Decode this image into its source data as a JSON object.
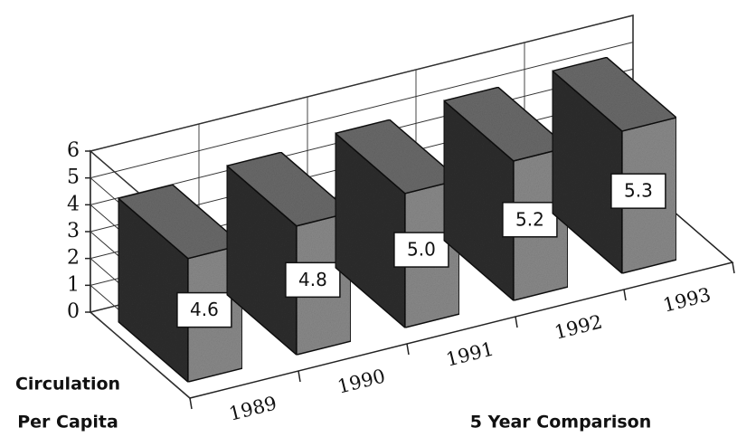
{
  "chart_data": {
    "type": "bar3d",
    "categories": [
      "1989",
      "1990",
      "1991",
      "1992",
      "1993"
    ],
    "values": [
      4.6,
      4.8,
      5.0,
      5.2,
      5.3
    ],
    "value_labels": [
      "4.6",
      "4.8",
      "5.0",
      "5.2",
      "5.3"
    ],
    "ylim": [
      0,
      6
    ],
    "yticks": [
      0,
      1,
      2,
      3,
      4,
      5,
      6
    ],
    "grid": true,
    "ylabel": [
      "Circulation",
      "Per Capita"
    ],
    "xlabel": "5 Year Comparison",
    "color": "#8a8a8a"
  }
}
